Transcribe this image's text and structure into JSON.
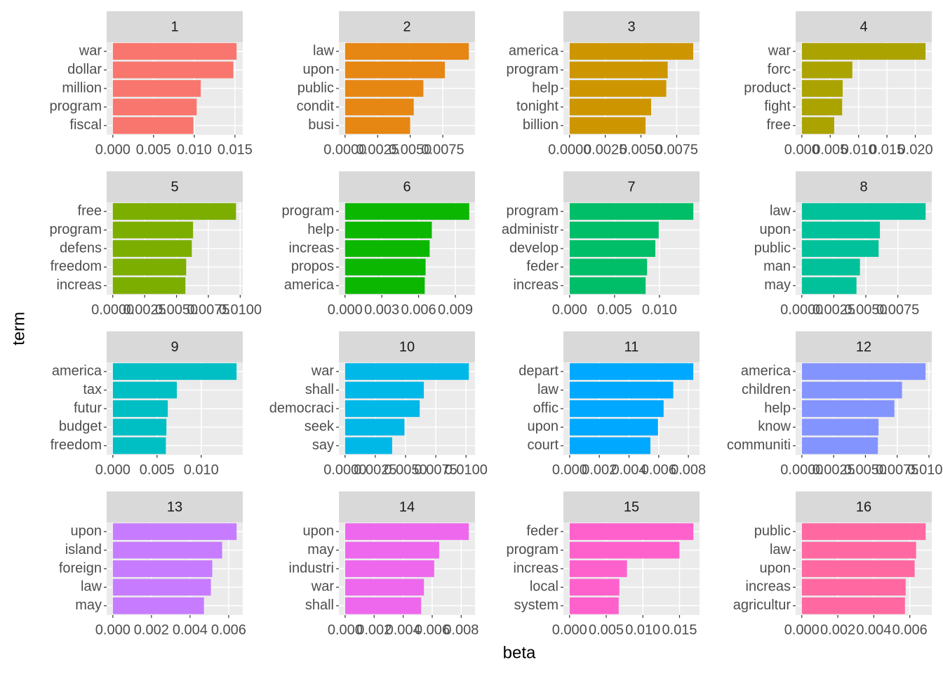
{
  "axis_labels": {
    "x": "beta",
    "y": "term"
  },
  "chart_data": [
    {
      "type": "bar",
      "orientation": "horizontal",
      "title": "1",
      "color": "#F8766D",
      "categories": [
        "war",
        "dollar",
        "million",
        "program",
        "fiscal"
      ],
      "values": [
        0.0152,
        0.0148,
        0.0108,
        0.0103,
        0.0099
      ],
      "xlim": [
        -0.00076,
        0.01596
      ],
      "xticks": [
        {
          "value": 0,
          "label": "0.000"
        },
        0.005,
        {
          "value": 0.01,
          "label": "0.010"
        },
        0.015
      ],
      "grid": true
    },
    {
      "type": "bar",
      "orientation": "horizontal",
      "title": "2",
      "color": "#E68613",
      "categories": [
        "law",
        "upon",
        "public",
        "condit",
        "busi"
      ],
      "values": [
        0.0095,
        0.00766,
        0.00601,
        0.00527,
        0.005
      ],
      "xlim": [
        -0.000475,
        0.009975
      ],
      "xticks": [
        {
          "value": 0,
          "label": "0.0000"
        },
        0.0025,
        {
          "value": 0.005,
          "label": "0.0050"
        },
        0.0075
      ],
      "grid": true
    },
    {
      "type": "bar",
      "orientation": "horizontal",
      "title": "3",
      "color": "#CD9600",
      "categories": [
        "america",
        "program",
        "help",
        "tonight",
        "billion"
      ],
      "values": [
        0.00866,
        0.00687,
        0.00677,
        0.00571,
        0.00532
      ],
      "xlim": [
        -0.00043,
        0.0091
      ],
      "xticks": [
        {
          "value": 0,
          "label": "0.0000"
        },
        0.0025,
        {
          "value": 0.005,
          "label": "0.0050"
        },
        0.0075
      ],
      "grid": true
    },
    {
      "type": "bar",
      "orientation": "horizontal",
      "title": "4",
      "color": "#ABA300",
      "categories": [
        "war",
        "forc",
        "product",
        "fight",
        "free"
      ],
      "values": [
        0.0218,
        0.0089,
        0.0072,
        0.0071,
        0.0057
      ],
      "xlim": [
        -0.00109,
        0.0229
      ],
      "xticks": [
        {
          "value": 0,
          "label": "0.000"
        },
        0.005,
        {
          "value": 0.01,
          "label": "0.010"
        },
        0.015,
        {
          "value": 0.02,
          "label": "0.020"
        }
      ],
      "grid": true
    },
    {
      "type": "bar",
      "orientation": "horizontal",
      "title": "5",
      "color": "#7CAE00",
      "categories": [
        "free",
        "program",
        "defens",
        "freedom",
        "increas"
      ],
      "values": [
        0.00967,
        0.0063,
        0.0062,
        0.00576,
        0.0057
      ],
      "xlim": [
        -0.00048,
        0.0102
      ],
      "xticks": [
        {
          "value": 0,
          "label": "0.0000"
        },
        0.0025,
        {
          "value": 0.005,
          "label": "0.0050"
        },
        0.0075,
        {
          "value": 0.01,
          "label": "0.0100"
        }
      ],
      "grid": true
    },
    {
      "type": "bar",
      "orientation": "horizontal",
      "title": "6",
      "color": "#0CB702",
      "categories": [
        "program",
        "help",
        "increas",
        "propos",
        "america"
      ],
      "values": [
        0.01013,
        0.00708,
        0.0069,
        0.00657,
        0.0065
      ],
      "xlim": [
        -0.0005,
        0.0106
      ],
      "xticks": [
        {
          "value": 0,
          "label": "0.000"
        },
        0.003,
        0.006,
        0.009
      ],
      "grid": true
    },
    {
      "type": "bar",
      "orientation": "horizontal",
      "title": "7",
      "color": "#00BE67",
      "categories": [
        "program",
        "administr",
        "develop",
        "feder",
        "increas"
      ],
      "values": [
        0.01377,
        0.00992,
        0.00954,
        0.00862,
        0.00846
      ],
      "xlim": [
        -0.00069,
        0.01446
      ],
      "xticks": [
        {
          "value": 0,
          "label": "0.000"
        },
        0.005,
        {
          "value": 0.01,
          "label": "0.010"
        }
      ],
      "grid": true
    },
    {
      "type": "bar",
      "orientation": "horizontal",
      "title": "8",
      "color": "#00C19A",
      "categories": [
        "law",
        "upon",
        "public",
        "man",
        "may"
      ],
      "values": [
        0.00967,
        0.0061,
        0.006,
        0.00454,
        0.00427
      ],
      "xlim": [
        -0.00048,
        0.01015
      ],
      "xticks": [
        {
          "value": 0,
          "label": "0.0000"
        },
        0.0025,
        {
          "value": 0.005,
          "label": "0.0050"
        },
        0.0075
      ],
      "grid": true
    },
    {
      "type": "bar",
      "orientation": "horizontal",
      "title": "9",
      "color": "#00BFC4",
      "categories": [
        "america",
        "tax",
        "futur",
        "budget",
        "freedom"
      ],
      "values": [
        0.014,
        0.00724,
        0.00622,
        0.00606,
        0.006
      ],
      "xlim": [
        -0.0007,
        0.0147
      ],
      "xticks": [
        {
          "value": 0,
          "label": "0.000"
        },
        0.005,
        {
          "value": 0.01,
          "label": "0.010"
        }
      ],
      "grid": true
    },
    {
      "type": "bar",
      "orientation": "horizontal",
      "title": "10",
      "color": "#00B8E7",
      "categories": [
        "war",
        "shall",
        "democraci",
        "seek",
        "say"
      ],
      "values": [
        0.01023,
        0.00651,
        0.00617,
        0.00491,
        0.00389
      ],
      "xlim": [
        -0.00051,
        0.01074
      ],
      "xticks": [
        {
          "value": 0,
          "label": "0.0000"
        },
        0.0025,
        {
          "value": 0.005,
          "label": "0.0050"
        },
        0.0075,
        {
          "value": 0.01,
          "label": "0.0100"
        }
      ],
      "grid": true
    },
    {
      "type": "bar",
      "orientation": "horizontal",
      "title": "11",
      "color": "#00A9FF",
      "categories": [
        "depart",
        "law",
        "offic",
        "upon",
        "court"
      ],
      "values": [
        0.00833,
        0.00698,
        0.00633,
        0.00595,
        0.00544
      ],
      "xlim": [
        -0.00042,
        0.00875
      ],
      "xticks": [
        {
          "value": 0,
          "label": "0.000"
        },
        0.002,
        0.004,
        0.006,
        0.008
      ],
      "grid": true
    },
    {
      "type": "bar",
      "orientation": "horizontal",
      "title": "12",
      "color": "#8494FF",
      "categories": [
        "america",
        "children",
        "help",
        "know",
        "communiti"
      ],
      "values": [
        0.00973,
        0.00788,
        0.00728,
        0.00603,
        0.00598
      ],
      "xlim": [
        -0.00049,
        0.01022
      ],
      "xticks": [
        {
          "value": 0,
          "label": "0.0000"
        },
        0.0025,
        {
          "value": 0.005,
          "label": "0.0050"
        },
        0.0075,
        {
          "value": 0.01,
          "label": "0.0100"
        }
      ],
      "grid": true
    },
    {
      "type": "bar",
      "orientation": "horizontal",
      "title": "13",
      "color": "#C77CFF",
      "categories": [
        "upon",
        "island",
        "foreign",
        "law",
        "may"
      ],
      "values": [
        0.00641,
        0.00566,
        0.00515,
        0.00508,
        0.00472
      ],
      "xlim": [
        -0.00032,
        0.00673
      ],
      "xticks": [
        {
          "value": 0,
          "label": "0.000"
        },
        0.002,
        0.004,
        0.006
      ],
      "grid": true
    },
    {
      "type": "bar",
      "orientation": "horizontal",
      "title": "14",
      "color": "#ED68ED",
      "categories": [
        "upon",
        "may",
        "industri",
        "war",
        "shall"
      ],
      "values": [
        0.00852,
        0.00648,
        0.00614,
        0.00543,
        0.00524
      ],
      "xlim": [
        -0.00043,
        0.00895
      ],
      "xticks": [
        {
          "value": 0,
          "label": "0.000"
        },
        0.002,
        0.004,
        0.006,
        0.008
      ],
      "grid": true
    },
    {
      "type": "bar",
      "orientation": "horizontal",
      "title": "15",
      "color": "#FF61CC",
      "categories": [
        "feder",
        "program",
        "increas",
        "local",
        "system"
      ],
      "values": [
        0.01689,
        0.015,
        0.00783,
        0.00679,
        0.0067
      ],
      "xlim": [
        -0.00084,
        0.01773
      ],
      "xticks": [
        {
          "value": 0,
          "label": "0.000"
        },
        0.005,
        {
          "value": 0.01,
          "label": "0.010"
        },
        0.015
      ],
      "grid": true
    },
    {
      "type": "bar",
      "orientation": "horizontal",
      "title": "16",
      "color": "#FF68A1",
      "categories": [
        "public",
        "law",
        "upon",
        "increas",
        "agricultur"
      ],
      "values": [
        0.00688,
        0.00635,
        0.00627,
        0.00577,
        0.00573
      ],
      "xlim": [
        -0.00034,
        0.00722
      ],
      "xticks": [
        {
          "value": 0,
          "label": "0.000"
        },
        0.002,
        0.004,
        0.006
      ],
      "grid": true
    }
  ]
}
